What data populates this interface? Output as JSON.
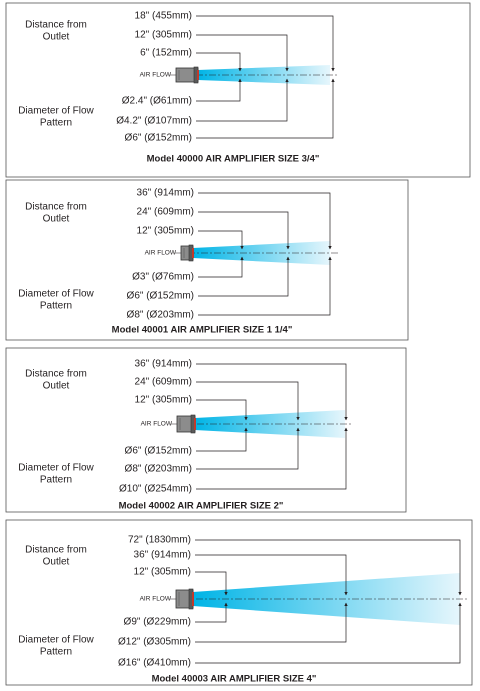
{
  "panels": [
    {
      "caption": "Model 40000 AIR AMPLIFIER SIZE 3/4\"",
      "distance_heading": [
        "Distance from",
        "Outlet"
      ],
      "diameter_heading": [
        "Diameter of Flow",
        "Pattern"
      ],
      "air_flow_label": "AIR FLOW",
      "distances": [
        "18\" (455mm)",
        "12\" (305mm)",
        "6\" (152mm)"
      ],
      "diameters": [
        "Ø2.4\" (Ø61mm)",
        "Ø4.2\" (Ø107mm)",
        "Ø6\" (Ø152mm)"
      ]
    },
    {
      "caption": "Model 40001 AIR AMPLIFIER SIZE 1 1/4\"",
      "distance_heading": [
        "Distance from",
        "Outlet"
      ],
      "diameter_heading": [
        "Diameter of Flow",
        "Pattern"
      ],
      "air_flow_label": "AIR FLOW",
      "distances": [
        "36\" (914mm)",
        "24\" (609mm)",
        "12\" (305mm)"
      ],
      "diameters": [
        "Ø3\" (Ø76mm)",
        "Ø6\" (Ø152mm)",
        "Ø8\" (Ø203mm)"
      ]
    },
    {
      "caption": "Model 40002 AIR AMPLIFIER SIZE 2\"",
      "distance_heading": [
        "Distance from",
        "Outlet"
      ],
      "diameter_heading": [
        "Diameter of Flow",
        "Pattern"
      ],
      "air_flow_label": "AIR FLOW",
      "distances": [
        "36\" (914mm)",
        "24\" (609mm)",
        "12\" (305mm)"
      ],
      "diameters": [
        "Ø6\" (Ø152mm)",
        "Ø8\" (Ø203mm)",
        "Ø10\" (Ø254mm)"
      ]
    },
    {
      "caption": "Model 40003 AIR AMPLIFIER SIZE 4\"",
      "distance_heading": [
        "Distance from",
        "Outlet"
      ],
      "diameter_heading": [
        "Diameter of Flow",
        "Pattern"
      ],
      "air_flow_label": "AIR FLOW",
      "distances": [
        "72\" (1830mm)",
        "36\" (914mm)",
        "12\" (305mm)"
      ],
      "diameters": [
        "Ø9\" (Ø229mm)",
        "Ø12\" (Ø305mm)",
        "Ø16\" (Ø410mm)"
      ]
    }
  ],
  "colors": {
    "flow_start": "#00b4e6",
    "flow_end": "#e6f6fc",
    "line": "#231f20",
    "border": "#555555"
  }
}
